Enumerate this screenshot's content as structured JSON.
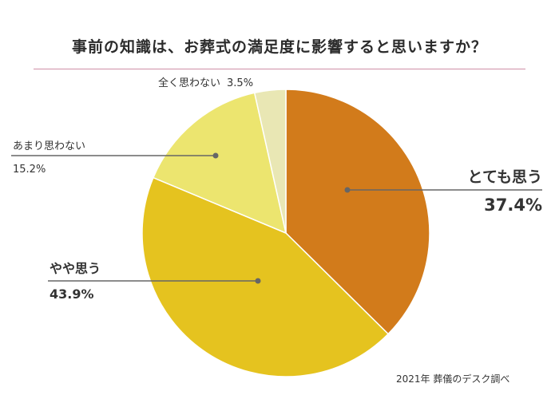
{
  "title": "事前の知識は、お葬式の満足度に影響すると思いますか？",
  "source": "2021年 葬儀のデスク調べ",
  "colors": {
    "rule": "#cf8fa6",
    "leader": "#666666",
    "label": "#333333",
    "slice_border": "#ffffff"
  },
  "chart_data": {
    "type": "pie",
    "title": "事前の知識は、お葬式の満足度に影響すると思いますか？",
    "start": "12 o'clock",
    "direction": "clockwise",
    "slices": [
      {
        "label": "とても思う",
        "value": 37.4,
        "value_label": "37.4%",
        "color": "#d27b1b"
      },
      {
        "label": "やや思う",
        "value": 43.9,
        "value_label": "43.9%",
        "color": "#e5c31f"
      },
      {
        "label": "あまり思わない",
        "value": 15.2,
        "value_label": "15.2%",
        "color": "#ece56f"
      },
      {
        "label": "全く思わない",
        "value": 3.5,
        "value_label": "3.5%",
        "color": "#e9e7b4"
      }
    ]
  }
}
